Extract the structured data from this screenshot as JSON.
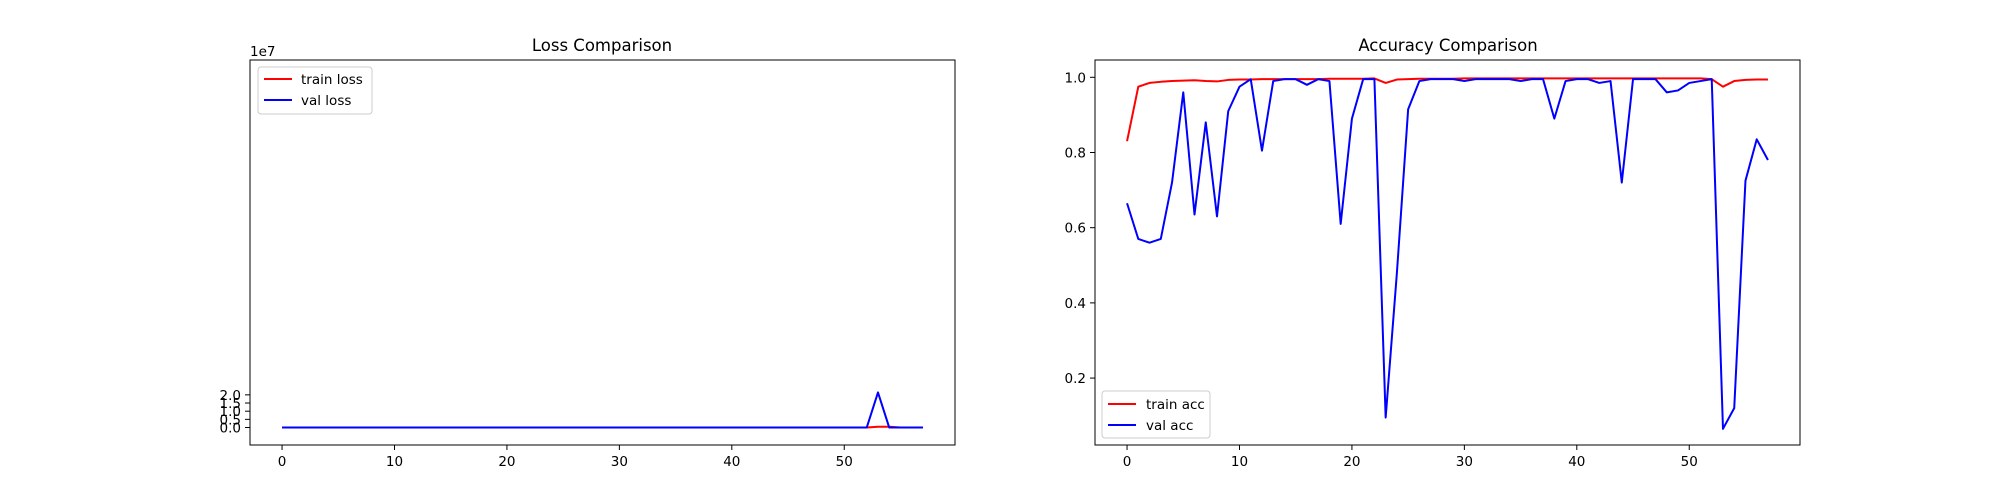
{
  "chart_data": [
    {
      "type": "line",
      "title": "Loss Comparison",
      "xlabel": "",
      "ylabel": "",
      "offset_label": "1e7",
      "xlim": [
        -2.85,
        59.85
      ],
      "ylim": [
        -1.07,
        22.5
      ],
      "xticks": [
        0,
        10,
        20,
        30,
        40,
        50
      ],
      "yticks": [
        0.0,
        0.5,
        1.0,
        1.5,
        2.0
      ],
      "xtick_labels": [
        "0",
        "10",
        "20",
        "30",
        "40",
        "50"
      ],
      "ytick_labels": [
        "0.0",
        "0.5",
        "1.0",
        "1.5",
        "2.0"
      ],
      "y_scale_note": "values in units of 1e7",
      "legend": {
        "position": "upper left",
        "entries": [
          "train loss",
          "val loss"
        ]
      },
      "grid": false,
      "x": [
        0,
        1,
        2,
        3,
        4,
        5,
        6,
        7,
        8,
        9,
        10,
        11,
        12,
        13,
        14,
        15,
        16,
        17,
        18,
        19,
        20,
        21,
        22,
        23,
        24,
        25,
        26,
        27,
        28,
        29,
        30,
        31,
        32,
        33,
        34,
        35,
        36,
        37,
        38,
        39,
        40,
        41,
        42,
        43,
        44,
        45,
        46,
        47,
        48,
        49,
        50,
        51,
        52,
        53,
        54,
        55,
        56,
        57
      ],
      "series": [
        {
          "name": "train loss",
          "color": "#ff0000",
          "values": [
            0,
            0,
            0,
            0,
            0,
            0,
            0,
            0,
            0,
            0,
            0,
            0,
            0,
            0,
            0,
            0,
            0,
            0,
            0,
            0,
            0,
            0,
            0,
            0,
            0,
            0,
            0,
            0,
            0,
            0,
            0,
            0,
            0,
            0,
            0,
            0,
            0,
            0,
            0,
            0,
            0,
            0,
            0,
            0,
            0,
            0,
            0,
            0,
            0,
            0,
            0,
            0,
            0,
            0.05,
            0.05,
            0,
            0,
            0
          ]
        },
        {
          "name": "val loss",
          "color": "#0000ff",
          "values": [
            0,
            0,
            0,
            0,
            0,
            0,
            0,
            0,
            0,
            0,
            0,
            0,
            0,
            0,
            0,
            0,
            0,
            0,
            0,
            0,
            0,
            0,
            0,
            0,
            0,
            0,
            0,
            0,
            0,
            0,
            0,
            0,
            0,
            0,
            0,
            0,
            0,
            0,
            0,
            0,
            0,
            0,
            0,
            0,
            0,
            0,
            0,
            0,
            0,
            0,
            0,
            0,
            0,
            2.15,
            0,
            0,
            0,
            0
          ]
        }
      ]
    },
    {
      "type": "line",
      "title": "Accuracy Comparison",
      "xlabel": "",
      "ylabel": "",
      "xlim": [
        -2.85,
        59.85
      ],
      "ylim": [
        0.022,
        1.046
      ],
      "xticks": [
        0,
        10,
        20,
        30,
        40,
        50
      ],
      "yticks": [
        0.2,
        0.4,
        0.6,
        0.8,
        1.0
      ],
      "xtick_labels": [
        "0",
        "10",
        "20",
        "30",
        "40",
        "50"
      ],
      "ytick_labels": [
        "0.2",
        "0.4",
        "0.6",
        "0.8",
        "1.0"
      ],
      "legend": {
        "position": "lower left",
        "entries": [
          "train acc",
          "val acc"
        ]
      },
      "grid": false,
      "x": [
        0,
        1,
        2,
        3,
        4,
        5,
        6,
        7,
        8,
        9,
        10,
        11,
        12,
        13,
        14,
        15,
        16,
        17,
        18,
        19,
        20,
        21,
        22,
        23,
        24,
        25,
        26,
        27,
        28,
        29,
        30,
        31,
        32,
        33,
        34,
        35,
        36,
        37,
        38,
        39,
        40,
        41,
        42,
        43,
        44,
        45,
        46,
        47,
        48,
        49,
        50,
        51,
        52,
        53,
        54,
        55,
        56,
        57
      ],
      "series": [
        {
          "name": "train acc",
          "color": "#ff0000",
          "values": [
            0.83,
            0.975,
            0.985,
            0.988,
            0.99,
            0.991,
            0.992,
            0.99,
            0.989,
            0.993,
            0.994,
            0.994,
            0.995,
            0.995,
            0.995,
            0.995,
            0.995,
            0.995,
            0.996,
            0.996,
            0.996,
            0.996,
            0.997,
            0.985,
            0.994,
            0.995,
            0.996,
            0.996,
            0.996,
            0.996,
            0.997,
            0.997,
            0.997,
            0.997,
            0.997,
            0.997,
            0.997,
            0.997,
            0.997,
            0.997,
            0.997,
            0.997,
            0.997,
            0.997,
            0.997,
            0.997,
            0.997,
            0.997,
            0.997,
            0.997,
            0.997,
            0.997,
            0.995,
            0.975,
            0.99,
            0.993,
            0.994,
            0.994
          ]
        },
        {
          "name": "val acc",
          "color": "#0000ff",
          "values": [
            0.665,
            0.57,
            0.56,
            0.57,
            0.72,
            0.96,
            0.635,
            0.88,
            0.63,
            0.91,
            0.975,
            0.995,
            0.805,
            0.99,
            0.995,
            0.995,
            0.98,
            0.995,
            0.99,
            0.61,
            0.89,
            0.995,
            0.995,
            0.095,
            0.48,
            0.915,
            0.99,
            0.995,
            0.995,
            0.995,
            0.99,
            0.995,
            0.995,
            0.995,
            0.995,
            0.99,
            0.995,
            0.995,
            0.89,
            0.99,
            0.995,
            0.995,
            0.985,
            0.99,
            0.72,
            0.995,
            0.995,
            0.995,
            0.96,
            0.965,
            0.985,
            0.99,
            0.995,
            0.065,
            0.12,
            0.725,
            0.835,
            0.78
          ]
        }
      ]
    }
  ]
}
